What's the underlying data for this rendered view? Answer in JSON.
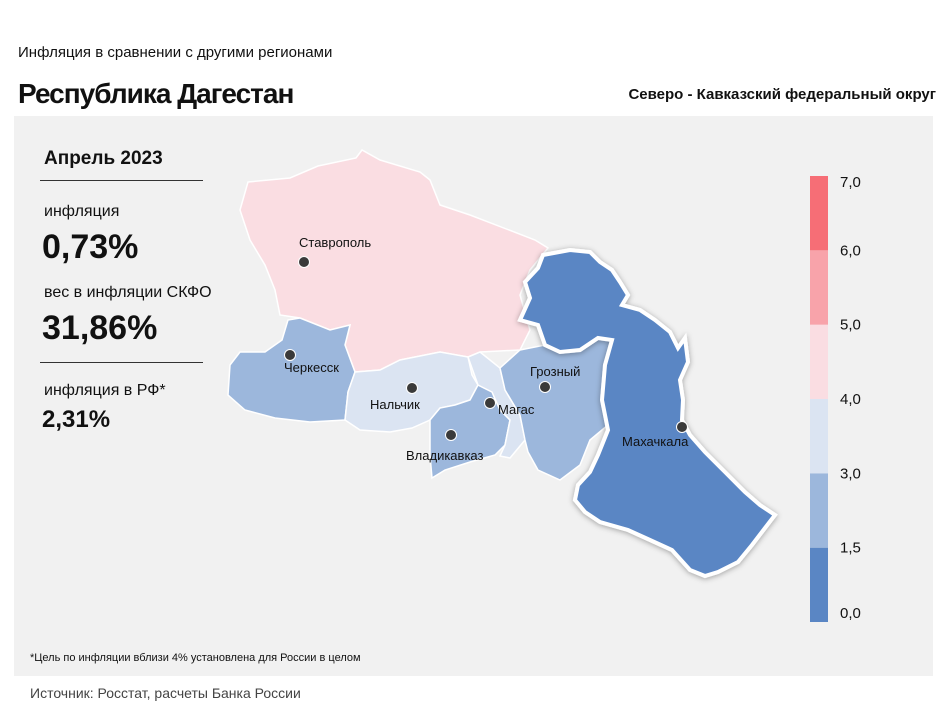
{
  "header": {
    "subtitle": "Инфляция  в сравнении  с другими  регионами",
    "title": "Республика Дагестан",
    "district": "Северо - Кавказский федеральный округ"
  },
  "stats": {
    "period": "Апрель 2023",
    "inflation_label": "инфляция",
    "inflation_value": "0,73%",
    "weight_label": "вес в инфляции  СКФО",
    "weight_value": "31,86%",
    "rf_label": "инфляция  в РФ*",
    "rf_value": "2,31%"
  },
  "footnote": "*Цель по инфляции вблизи 4% установлена для России в целом",
  "source": "Источник: Росстат, расчеты Банка России",
  "cities": [
    {
      "name": "Ставрополь"
    },
    {
      "name": "Черкесск"
    },
    {
      "name": "Нальчик"
    },
    {
      "name": "Магас"
    },
    {
      "name": "Грозный"
    },
    {
      "name": "Владикавказ"
    },
    {
      "name": "Махачкала"
    }
  ],
  "legend": {
    "ticks": [
      "0,0",
      "1,5",
      "3,0",
      "4,0",
      "5,0",
      "6,0",
      "7,0"
    ],
    "colors": [
      "#5a86c4",
      "#9cb7dc",
      "#dbe4f2",
      "#fadde2",
      "#f8a3aa",
      "#f66e76"
    ]
  },
  "colors": {
    "stavropol": "#fadde2",
    "karachay": "#9cb7dc",
    "kabardino": "#dbe4f2",
    "ingushetia": "#dbe4f2",
    "chechnya": "#9cb7dc",
    "north_ossetia": "#9cb7dc",
    "dagestan": "#5a86c4"
  }
}
